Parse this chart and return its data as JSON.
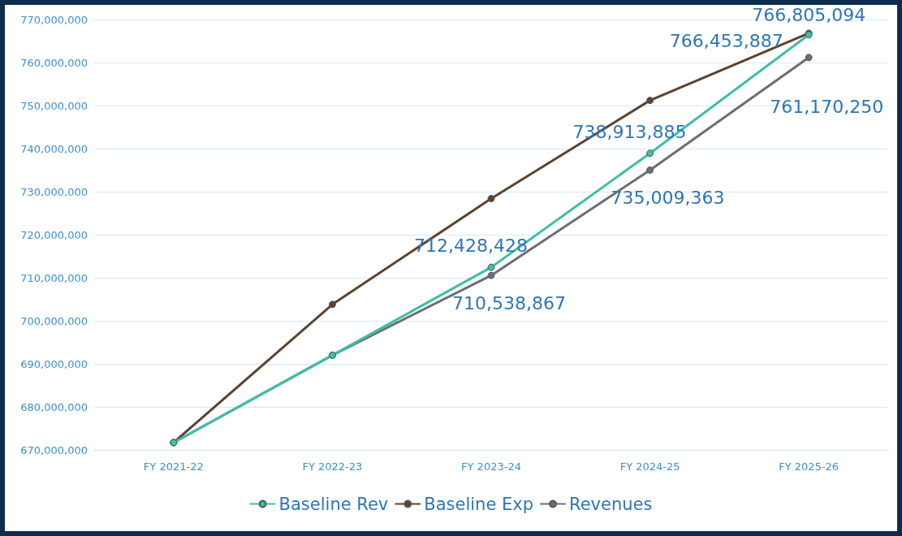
{
  "chart_data": {
    "type": "line",
    "categories": [
      "FY 2021-22",
      "FY 2022-23",
      "FY 2023-24",
      "FY 2024-25",
      "FY 2025-26"
    ],
    "series": [
      {
        "name": "Baseline Rev",
        "color": "#3dbfa8",
        "values": [
          671700000,
          692000000,
          712428428,
          738913885,
          766453887
        ],
        "value_labels": [
          null,
          null,
          "712,428,428",
          "738,913,885",
          "766,453,887"
        ]
      },
      {
        "name": "Baseline Exp",
        "color": "#5b4330",
        "values": [
          671700000,
          703800000,
          728400000,
          751200000,
          766805094
        ],
        "value_labels": [
          null,
          null,
          null,
          null,
          "766,805,094"
        ]
      },
      {
        "name": "Revenues",
        "color": "#6d6e71",
        "values": [
          671700000,
          692000000,
          710538867,
          735009363,
          761170250
        ],
        "value_labels": [
          null,
          null,
          "710,538,867",
          "735,009,363",
          "761,170,250"
        ]
      }
    ],
    "ylim": [
      670000000,
      770000000
    ],
    "yticks": [
      {
        "value": 670000000,
        "label": "670,000,000"
      },
      {
        "value": 680000000,
        "label": "680,000,000"
      },
      {
        "value": 690000000,
        "label": "690,000,000"
      },
      {
        "value": 700000000,
        "label": "700,000,000"
      },
      {
        "value": 710000000,
        "label": "710,000,000"
      },
      {
        "value": 720000000,
        "label": "720,000,000"
      },
      {
        "value": 730000000,
        "label": "730,000,000"
      },
      {
        "value": 740000000,
        "label": "740,000,000"
      },
      {
        "value": 750000000,
        "label": "750,000,000"
      },
      {
        "value": 760000000,
        "label": "760,000,000"
      },
      {
        "value": 770000000,
        "label": "770,000,000"
      }
    ],
    "grid": "y",
    "legend": "bottom",
    "marker": "circle",
    "line_style": "solid"
  }
}
